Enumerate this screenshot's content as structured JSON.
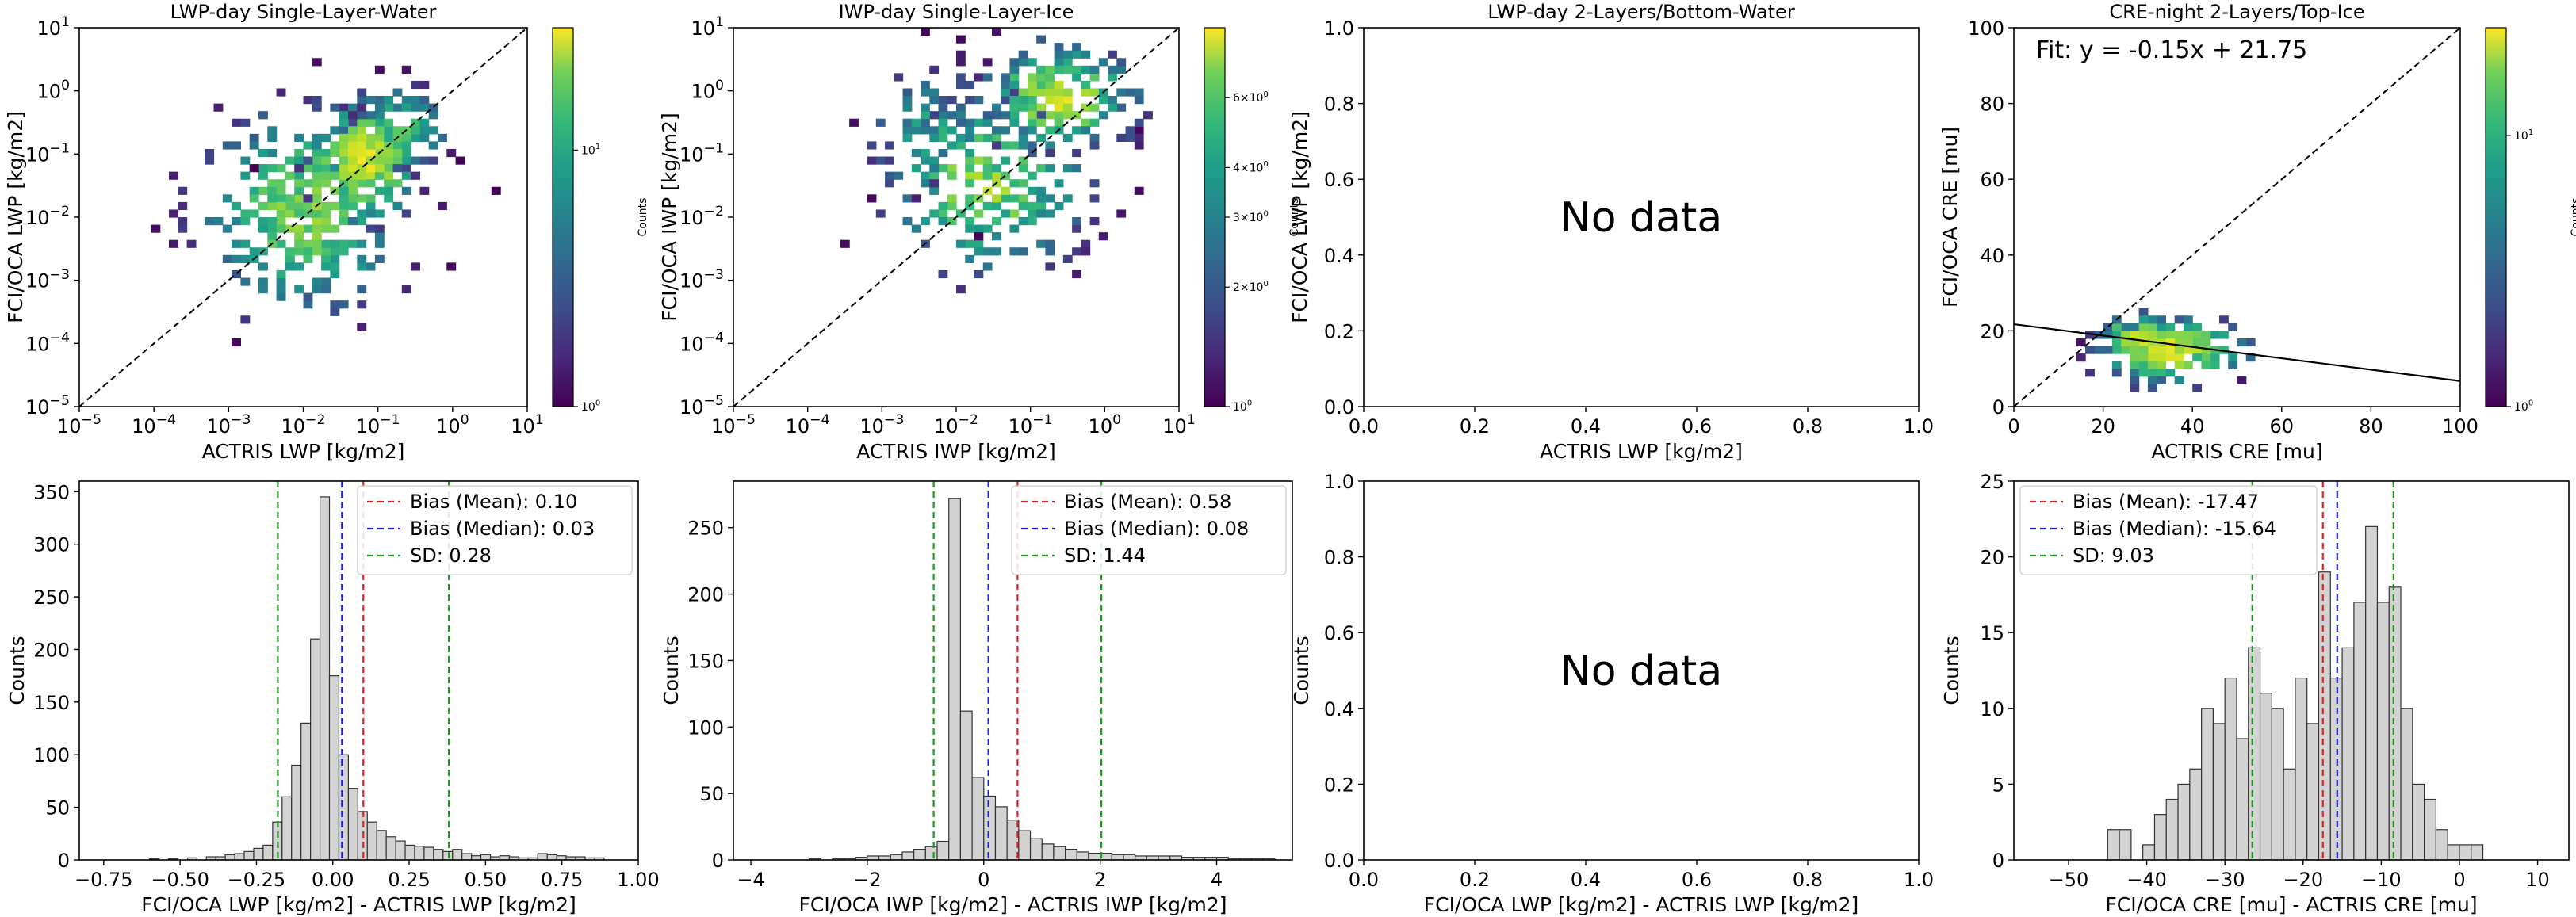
{
  "figure": {
    "title": ""
  },
  "chart_data": [
    {
      "id": "p1",
      "type": "heatmap",
      "scale": "log",
      "title": "LWP-day Single-Layer-Water",
      "xlabel": "ACTRIS LWP [kg/m2]",
      "ylabel": "FCI/OCA LWP [kg/m2]",
      "xlim": [
        -5,
        1
      ],
      "ylim": [
        -5,
        1
      ],
      "xticks": [
        -5,
        -4,
        -3,
        -2,
        -1,
        0,
        1
      ],
      "xtick_labels": [
        "10^-5",
        "10^-4",
        "10^-3",
        "10^-2",
        "10^-1",
        "10^0",
        "10^1"
      ],
      "yticks": [
        -5,
        -4,
        -3,
        -2,
        -1,
        0,
        1
      ],
      "ytick_labels": [
        "10^-5",
        "10^-4",
        "10^-3",
        "10^-2",
        "10^-1",
        "10^0",
        "10^1"
      ],
      "one_to_one": true,
      "colorbar": {
        "label": "Counts",
        "min": 1,
        "max": 30,
        "ticks": [
          1,
          10
        ],
        "tick_labels": [
          "10^0",
          "10^1"
        ]
      },
      "cloud": [
        {
          "x": -2.0,
          "y": -1.9,
          "sx": 0.65,
          "sy": 0.75,
          "n": 260,
          "peak": 18
        },
        {
          "x": -1.2,
          "y": -1.1,
          "sx": 0.35,
          "sy": 0.45,
          "n": 170,
          "peak": 28
        },
        {
          "x": -0.7,
          "y": -0.6,
          "sx": 0.3,
          "sy": 0.35,
          "n": 90,
          "peak": 12
        }
      ]
    },
    {
      "id": "p2",
      "type": "heatmap",
      "scale": "log",
      "title": "IWP-day Single-Layer-Ice",
      "xlabel": "ACTRIS IWP [kg/m2]",
      "ylabel": "FCI/OCA IWP [kg/m2]",
      "xlim": [
        -5,
        1
      ],
      "ylim": [
        -5,
        1
      ],
      "xticks": [
        -5,
        -4,
        -3,
        -2,
        -1,
        0,
        1
      ],
      "xtick_labels": [
        "10^-5",
        "10^-4",
        "10^-3",
        "10^-2",
        "10^-1",
        "10^0",
        "10^1"
      ],
      "yticks": [
        -5,
        -4,
        -3,
        -2,
        -1,
        0,
        1
      ],
      "ytick_labels": [
        "10^-5",
        "10^-4",
        "10^-3",
        "10^-2",
        "10^-1",
        "10^0",
        "10^1"
      ],
      "one_to_one": true,
      "colorbar": {
        "label": "Counts",
        "min": 1,
        "max": 9,
        "ticks": [
          1,
          2,
          3,
          4,
          6
        ],
        "tick_labels": [
          "10^0",
          "2×10^0",
          "3×10^0",
          "4×10^0",
          "6×10^0"
        ]
      },
      "cloud": [
        {
          "x": -1.6,
          "y": -1.5,
          "sx": 0.7,
          "sy": 0.75,
          "n": 200,
          "peak": 7
        },
        {
          "x": -0.6,
          "y": -0.1,
          "sx": 0.55,
          "sy": 0.45,
          "n": 160,
          "peak": 8
        },
        {
          "x": -2.3,
          "y": -0.6,
          "sx": 0.45,
          "sy": 0.55,
          "n": 70,
          "peak": 4
        }
      ]
    },
    {
      "id": "p3",
      "type": "scatter",
      "empty": true,
      "title": "LWP-day 2-Layers/Bottom-Water",
      "xlabel": "ACTRIS LWP [kg/m2]",
      "ylabel": "FCI/OCA LWP [kg/m2]",
      "xlim": [
        0,
        1
      ],
      "ylim": [
        0,
        1
      ],
      "xticks": [
        0,
        0.2,
        0.4,
        0.6,
        0.8,
        1.0
      ],
      "xtick_labels": [
        "0.0",
        "0.2",
        "0.4",
        "0.6",
        "0.8",
        "1.0"
      ],
      "yticks": [
        0,
        0.2,
        0.4,
        0.6,
        0.8,
        1.0
      ],
      "ytick_labels": [
        "0.0",
        "0.2",
        "0.4",
        "0.6",
        "0.8",
        "1.0"
      ],
      "annotation": "No data"
    },
    {
      "id": "p4",
      "type": "heatmap",
      "scale": "linear",
      "title": "CRE-night 2-Layers/Top-Ice",
      "xlabel": "ACTRIS CRE [mu]",
      "ylabel": "FCI/OCA CRE [mu]",
      "xlim": [
        0,
        100
      ],
      "ylim": [
        0,
        100
      ],
      "xticks": [
        0,
        20,
        40,
        60,
        80,
        100
      ],
      "xtick_labels": [
        "0",
        "20",
        "40",
        "60",
        "80",
        "100"
      ],
      "yticks": [
        0,
        20,
        40,
        60,
        80,
        100
      ],
      "ytick_labels": [
        "0",
        "20",
        "40",
        "60",
        "80",
        "100"
      ],
      "one_to_one": true,
      "fit": {
        "slope": -0.15,
        "intercept": 21.75,
        "label": "Fit: y = -0.15x + 21.75"
      },
      "colorbar": {
        "label": "Counts",
        "min": 1,
        "max": 25,
        "ticks": [
          1,
          10
        ],
        "tick_labels": [
          "10^0",
          "10^1"
        ]
      },
      "cloud": [
        {
          "x": 35,
          "y": 15,
          "sx": 8,
          "sy": 4,
          "n": 220,
          "peak": 22
        },
        {
          "x": 28,
          "y": 18,
          "sx": 4,
          "sy": 3,
          "n": 80,
          "peak": 20
        }
      ]
    },
    {
      "id": "p5",
      "type": "bar",
      "title": "",
      "xlabel": "FCI/OCA LWP [kg/m2] - ACTRIS LWP [kg/m2]",
      "ylabel": "Counts",
      "xlim": [
        -0.83,
        1.0
      ],
      "ylim": [
        0,
        360
      ],
      "xticks": [
        -0.75,
        -0.5,
        -0.25,
        0,
        0.25,
        0.5,
        0.75,
        1.0
      ],
      "xtick_labels": [
        "−0.75",
        "−0.50",
        "−0.25",
        "0.00",
        "0.25",
        "0.50",
        "0.75",
        "1.00"
      ],
      "yticks": [
        0,
        50,
        100,
        150,
        200,
        250,
        300,
        350
      ],
      "ytick_labels": [
        "0",
        "50",
        "100",
        "150",
        "200",
        "250",
        "300",
        "350"
      ],
      "bin_start": -0.6,
      "bin_width": 0.031,
      "values": [
        1,
        0,
        1,
        0,
        2,
        0,
        3,
        3,
        5,
        6,
        8,
        11,
        14,
        36,
        60,
        90,
        130,
        210,
        345,
        175,
        100,
        68,
        46,
        36,
        28,
        22,
        18,
        14,
        13,
        12,
        10,
        8,
        10,
        6,
        4,
        5,
        3,
        4,
        3,
        2,
        2,
        6,
        5,
        4,
        3,
        3,
        2,
        2
      ],
      "lines": [
        {
          "x": 0.1,
          "color": "#d62728",
          "label": "Bias (Mean): 0.10"
        },
        {
          "x": 0.03,
          "color": "#1f1fd6",
          "label": "Bias (Median): 0.03"
        },
        {
          "x": -0.18,
          "color": "#1a9a1a",
          "label": "SD: 0.28"
        },
        {
          "x": 0.38,
          "color": "#1a9a1a",
          "label": ""
        }
      ]
    },
    {
      "id": "p6",
      "type": "bar",
      "title": "",
      "xlabel": "FCI/OCA IWP [kg/m2] - ACTRIS IWP [kg/m2]",
      "ylabel": "Counts",
      "xlim": [
        -4.3,
        5.3
      ],
      "ylim": [
        0,
        285
      ],
      "xticks": [
        -4,
        -2,
        0,
        2,
        4
      ],
      "xtick_labels": [
        "−4",
        "−2",
        "0",
        "2",
        "4"
      ],
      "yticks": [
        0,
        50,
        100,
        150,
        200,
        250
      ],
      "ytick_labels": [
        "0",
        "50",
        "100",
        "150",
        "200",
        "250"
      ],
      "bin_start": -3.0,
      "bin_width": 0.2,
      "values": [
        1,
        0,
        1,
        1,
        2,
        3,
        3,
        4,
        6,
        8,
        10,
        14,
        272,
        112,
        62,
        48,
        40,
        30,
        22,
        16,
        12,
        10,
        8,
        6,
        5,
        5,
        4,
        4,
        3,
        3,
        3,
        3,
        2,
        2,
        2,
        2,
        1,
        1,
        1,
        1
      ],
      "lines": [
        {
          "x": 0.58,
          "color": "#d62728",
          "label": "Bias (Mean): 0.58"
        },
        {
          "x": 0.08,
          "color": "#1f1fd6",
          "label": "Bias (Median): 0.08"
        },
        {
          "x": -0.86,
          "color": "#1a9a1a",
          "label": "SD: 1.44"
        },
        {
          "x": 2.02,
          "color": "#1a9a1a",
          "label": ""
        }
      ]
    },
    {
      "id": "p7",
      "type": "bar",
      "empty": true,
      "title": "",
      "xlabel": "FCI/OCA LWP [kg/m2] - ACTRIS LWP [kg/m2]",
      "ylabel": "Counts",
      "xlim": [
        0,
        1
      ],
      "ylim": [
        0,
        1
      ],
      "xticks": [
        0,
        0.2,
        0.4,
        0.6,
        0.8,
        1.0
      ],
      "xtick_labels": [
        "0.0",
        "0.2",
        "0.4",
        "0.6",
        "0.8",
        "1.0"
      ],
      "yticks": [
        0,
        0.2,
        0.4,
        0.6,
        0.8,
        1.0
      ],
      "ytick_labels": [
        "0.0",
        "0.2",
        "0.4",
        "0.6",
        "0.8",
        "1.0"
      ],
      "annotation": "No data"
    },
    {
      "id": "p8",
      "type": "bar",
      "title": "",
      "xlabel": "FCI/OCA CRE [mu] - ACTRIS CRE [mu]",
      "ylabel": "Counts",
      "xlim": [
        -57,
        14
      ],
      "ylim": [
        0,
        25
      ],
      "xticks": [
        -50,
        -40,
        -30,
        -20,
        -10,
        0,
        10
      ],
      "xtick_labels": [
        "−50",
        "−40",
        "−30",
        "−20",
        "−10",
        "0",
        "10"
      ],
      "yticks": [
        0,
        5,
        10,
        15,
        20,
        25
      ],
      "ytick_labels": [
        "0",
        "5",
        "10",
        "15",
        "20",
        "25"
      ],
      "bin_start": -45,
      "bin_width": 1.5,
      "values": [
        2,
        2,
        0,
        1,
        3,
        4,
        5,
        6,
        10,
        9,
        12,
        8,
        14,
        11,
        10,
        6,
        12,
        9,
        19,
        12,
        14,
        17,
        22,
        17,
        18,
        10,
        5,
        4,
        2,
        1,
        1,
        1
      ],
      "lines": [
        {
          "x": -17.47,
          "color": "#d62728",
          "label": "Bias (Mean): -17.47"
        },
        {
          "x": -15.64,
          "color": "#1f1fd6",
          "label": "Bias (Median): -15.64"
        },
        {
          "x": -26.5,
          "color": "#1a9a1a",
          "label": "SD: 9.03"
        },
        {
          "x": -8.44,
          "color": "#1a9a1a",
          "label": ""
        }
      ]
    }
  ]
}
